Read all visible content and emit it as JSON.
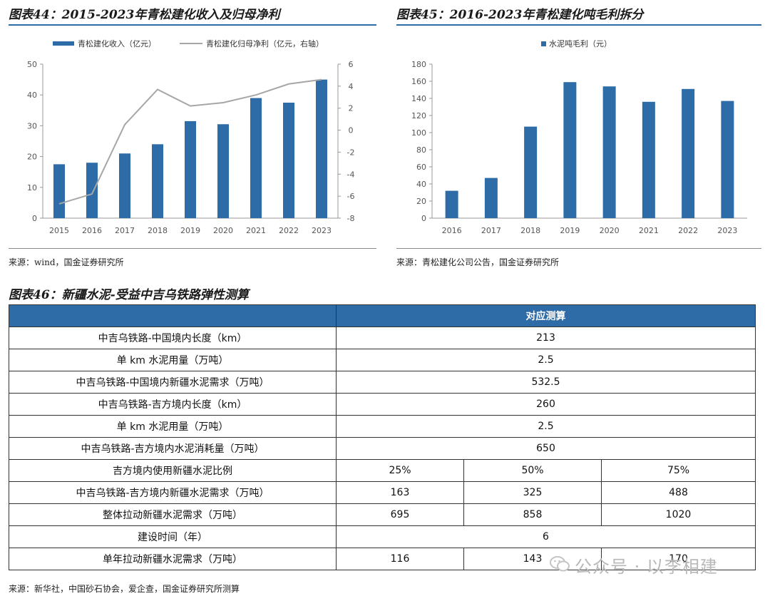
{
  "fig44": {
    "title": "图表44：2015-2023年青松建化收入及归母净利",
    "source": "来源：wind，国金证券研究所"
  },
  "fig45": {
    "title": "图表45：2016-2023年青松建化吨毛利拆分",
    "source": "来源：青松建化公司公告，国金证券研究所"
  },
  "fig46": {
    "title": "图表46：新疆水泥-受益中吉乌铁路弹性测算",
    "source": "来源：新华社，中国砂石协会，爱企查，国金证券研究所测算",
    "header": [
      "",
      "对应测算"
    ],
    "rows": [
      {
        "label": "中吉乌铁路-中国境内长度（km）",
        "values": [
          "213"
        ]
      },
      {
        "label": "单 km 水泥用量（万吨）",
        "values": [
          "2.5"
        ]
      },
      {
        "label": "中吉乌铁路-中国境内新疆水泥需求（万吨）",
        "values": [
          "532.5"
        ]
      },
      {
        "label": "中吉乌铁路-吉方境内长度（km）",
        "values": [
          "260"
        ]
      },
      {
        "label": "单 km 水泥用量（万吨）",
        "values": [
          "2.5"
        ]
      },
      {
        "label": "中吉乌铁路-吉方境内水泥消耗量（万吨）",
        "values": [
          "650"
        ]
      },
      {
        "label": "吉方境内使用新疆水泥比例",
        "values": [
          "25%",
          "50%",
          "75%"
        ]
      },
      {
        "label": "中吉乌铁路-吉方境内新疆水泥需求（万吨）",
        "values": [
          "163",
          "325",
          "488"
        ]
      },
      {
        "label": "整体拉动新疆水泥需求（万吨）",
        "values": [
          "695",
          "858",
          "1020"
        ]
      },
      {
        "label": "建设时间（年）",
        "values": [
          "6"
        ]
      },
      {
        "label": "单年拉动新疆水泥需求（万吨）",
        "values": [
          "116",
          "143",
          "170"
        ]
      }
    ]
  },
  "watermark": "公众号 · 以李相建",
  "colors": {
    "bar": "#2e6ca8",
    "line": "#a6a6a6",
    "header_bg": "#2e6ca8"
  },
  "chart_data": [
    {
      "type": "bar",
      "title": "2015-2023年青松建化收入及归母净利",
      "categories": [
        "2015",
        "2016",
        "2017",
        "2018",
        "2019",
        "2020",
        "2021",
        "2022",
        "2023"
      ],
      "series": [
        {
          "name": "青松建化收入（亿元）",
          "type": "bar",
          "axis": "left",
          "values": [
            17.5,
            18,
            21,
            24,
            31.5,
            30.5,
            39,
            37.5,
            45
          ]
        },
        {
          "name": "青松建化归母净利（亿元，右轴）",
          "type": "line",
          "axis": "right",
          "values": [
            -6.7,
            -5.8,
            0.5,
            3.7,
            2.2,
            2.5,
            3.2,
            4.2,
            4.6
          ]
        }
      ],
      "ylim": [
        0,
        50
      ],
      "yticks": [
        0,
        10,
        20,
        30,
        40,
        50
      ],
      "y2lim": [
        -8,
        6
      ],
      "y2ticks": [
        -8,
        -6,
        -4,
        -2,
        0,
        2,
        4,
        6
      ],
      "legend": "top",
      "grid": false
    },
    {
      "type": "bar",
      "title": "2016-2023年青松建化吨毛利拆分",
      "categories": [
        "2016",
        "2017",
        "2018",
        "2019",
        "2020",
        "2021",
        "2022",
        "2023"
      ],
      "series": [
        {
          "name": "水泥吨毛利（元）",
          "values": [
            32,
            47,
            107,
            159,
            154,
            136,
            151,
            137
          ]
        }
      ],
      "ylim": [
        0,
        180
      ],
      "yticks": [
        0,
        20,
        40,
        60,
        80,
        100,
        120,
        140,
        160,
        180
      ],
      "legend": "top",
      "grid": false
    }
  ]
}
